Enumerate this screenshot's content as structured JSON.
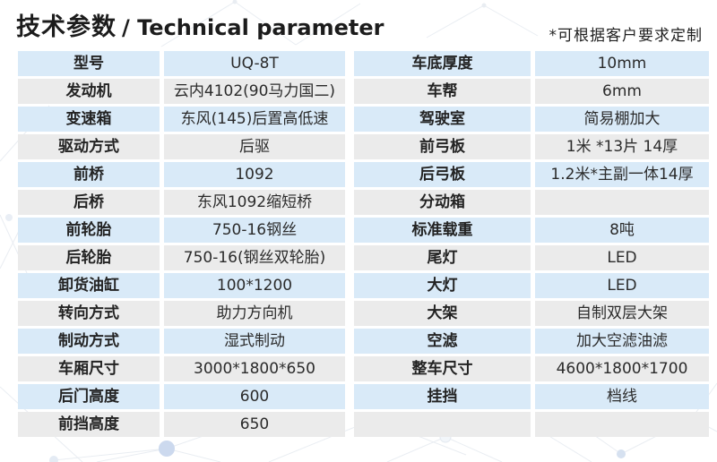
{
  "page": {
    "title_zh": "技术参数",
    "title_en": "/ Technical parameter",
    "note": "*可根据客户要求定制"
  },
  "colors": {
    "row_alt_blue": "#d9eaf8",
    "row_alt_gray": "#ebebeb",
    "text_dark": "#262626",
    "background": "#ffffff"
  },
  "left_table": {
    "rows": [
      {
        "label": "型号",
        "value": "UQ-8T"
      },
      {
        "label": "发动机",
        "value": "云内4102(90马力国二)"
      },
      {
        "label": "变速箱",
        "value": "东风(145)后置高低速"
      },
      {
        "label": "驱动方式",
        "value": "后驱"
      },
      {
        "label": "前桥",
        "value": "1092"
      },
      {
        "label": "后桥",
        "value": "东风1092缩短桥"
      },
      {
        "label": "前轮胎",
        "value": "750-16钢丝"
      },
      {
        "label": "后轮胎",
        "value": "750-16(钢丝双轮胎)"
      },
      {
        "label": "卸货油缸",
        "value": "100*1200"
      },
      {
        "label": "转向方式",
        "value": "助力方向机"
      },
      {
        "label": "制动方式",
        "value": "湿式制动"
      },
      {
        "label": "车厢尺寸",
        "value": "3000*1800*650"
      },
      {
        "label": "后门高度",
        "value": "600"
      },
      {
        "label": "前挡高度",
        "value": "650"
      }
    ]
  },
  "right_table": {
    "rows": [
      {
        "label": "车底厚度",
        "value": "10mm"
      },
      {
        "label": "车帮",
        "value": "6mm"
      },
      {
        "label": "驾驶室",
        "value": "简易棚加大"
      },
      {
        "label": "前弓板",
        "value": "1米 *13片 14厚"
      },
      {
        "label": "后弓板",
        "value": "1.2米*主副一体14厚"
      },
      {
        "label": "分动箱",
        "value": ""
      },
      {
        "label": "标准载重",
        "value": "8吨"
      },
      {
        "label": "尾灯",
        "value": "LED"
      },
      {
        "label": "大灯",
        "value": "LED"
      },
      {
        "label": "大架",
        "value": "自制双层大架"
      },
      {
        "label": "空滤",
        "value": "加大空滤油滤"
      },
      {
        "label": "整车尺寸",
        "value": "4600*1800*1700"
      },
      {
        "label": "挂挡",
        "value": "档线"
      },
      {
        "label": "",
        "value": ""
      }
    ]
  }
}
